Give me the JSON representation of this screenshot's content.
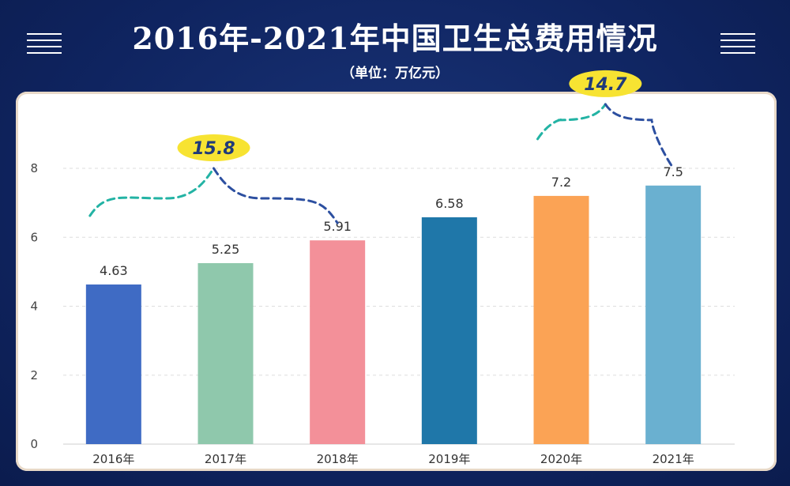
{
  "header": {
    "title": "2016年-2021年中国卫生总费用情况",
    "subtitle": "（单位：万亿元）",
    "left_icon": "menu-icon",
    "right_icon": "menu-icon"
  },
  "colors": {
    "background": "#0f2460",
    "bubble": "#f7e332",
    "brace_left": "#23b3a4",
    "brace_right": "#2c4fa0"
  },
  "chart_data": {
    "type": "bar",
    "categories": [
      "2016年",
      "2017年",
      "2018年",
      "2019年",
      "2020年",
      "2021年"
    ],
    "values": [
      4.63,
      5.25,
      5.91,
      6.58,
      7.2,
      7.5
    ],
    "value_labels": [
      "4.63",
      "5.25",
      "5.91",
      "6.58",
      "7.2",
      "7.5"
    ],
    "bar_colors": [
      "#3f6bc4",
      "#8fc8ac",
      "#f39099",
      "#1f77a9",
      "#fba355",
      "#6ab0d0"
    ],
    "ylim": [
      0,
      8
    ],
    "yticks": [
      0,
      2,
      4,
      6,
      8
    ],
    "grid": true,
    "annotations": [
      {
        "text": "15.8",
        "from_category": 0,
        "to_category": 2
      },
      {
        "text": "14.7",
        "from_category": 4,
        "to_category": 5
      }
    ]
  }
}
